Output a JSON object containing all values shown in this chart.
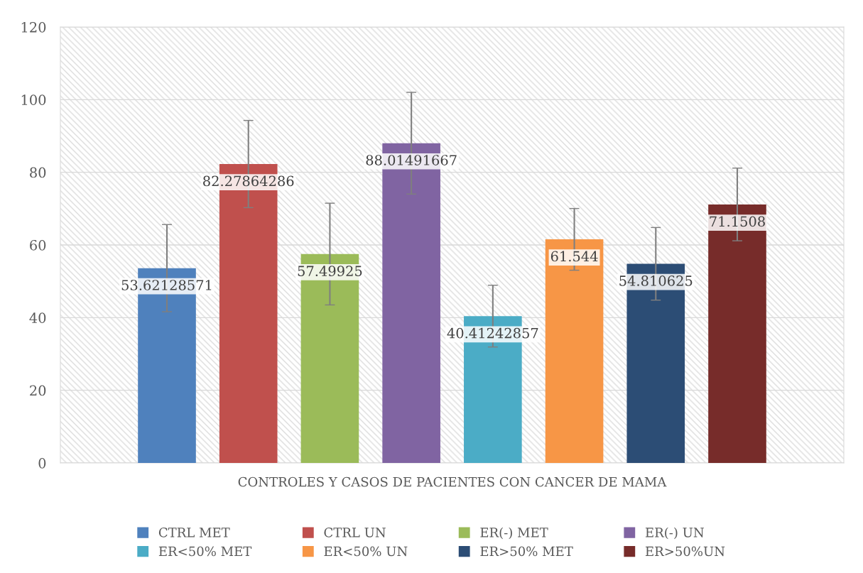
{
  "chart_data": {
    "type": "bar",
    "categories": [
      "CONTROLES Y CASOS DE PACIENTES CON CANCER DE MAMA"
    ],
    "series": [
      {
        "name": "CTRL MET",
        "color": "#4f81bd",
        "values": [
          53.62128571
        ],
        "errors": [
          12
        ]
      },
      {
        "name": "CTRL UN",
        "color": "#c0504d",
        "values": [
          82.27864286
        ],
        "errors": [
          12
        ]
      },
      {
        "name": "ER(-) MET",
        "color": "#9bbb59",
        "values": [
          57.49925
        ],
        "errors": [
          14
        ]
      },
      {
        "name": "ER(-) UN",
        "color": "#8064a2",
        "values": [
          88.01491667
        ],
        "errors": [
          14
        ]
      },
      {
        "name": "ER<50% MET",
        "color": "#4bacc6",
        "values": [
          40.41242857
        ],
        "errors": [
          8.5
        ]
      },
      {
        "name": "ER<50% UN",
        "color": "#f79646",
        "values": [
          61.544
        ],
        "errors": [
          8.5
        ]
      },
      {
        "name": "ER>50% MET",
        "color": "#2c4d75",
        "values": [
          54.810625
        ],
        "errors": [
          10
        ]
      },
      {
        "name": "ER>50%UN",
        "color": "#772c2a",
        "values": [
          71.1508
        ],
        "errors": [
          10
        ]
      }
    ],
    "ylim": [
      0,
      120
    ],
    "yticks": [
      0,
      20,
      40,
      60,
      80,
      100,
      120
    ],
    "grid": "y",
    "legend": "bottom",
    "data_labels": true
  }
}
